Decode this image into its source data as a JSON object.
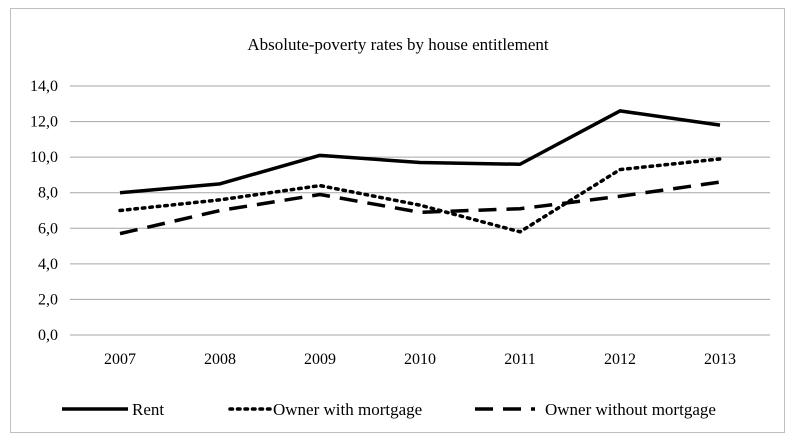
{
  "chart_data": {
    "type": "line",
    "title": "Absolute-poverty rates by house entitlement",
    "xlabel": "",
    "ylabel": "",
    "categories": [
      "2007",
      "2008",
      "2009",
      "2010",
      "2011",
      "2012",
      "2013"
    ],
    "ylim": [
      0,
      14
    ],
    "ytick_labels": [
      "0,0",
      "2,0",
      "4,0",
      "6,0",
      "8,0",
      "10,0",
      "12,0",
      "14,0"
    ],
    "grid": "horizontal",
    "legend_position": "bottom",
    "series": [
      {
        "name": "Rent",
        "style": "solid",
        "color": "#000000",
        "values": [
          8.0,
          8.5,
          10.1,
          9.7,
          9.6,
          12.6,
          11.8
        ]
      },
      {
        "name": "Owner with mortgage",
        "style": "dotted",
        "color": "#000000",
        "values": [
          7.0,
          7.6,
          8.4,
          7.3,
          5.8,
          9.3,
          9.9
        ]
      },
      {
        "name": "Owner without mortgage",
        "style": "dashed",
        "color": "#000000",
        "values": [
          5.7,
          7.0,
          7.9,
          6.9,
          7.1,
          7.8,
          8.6
        ]
      }
    ]
  }
}
